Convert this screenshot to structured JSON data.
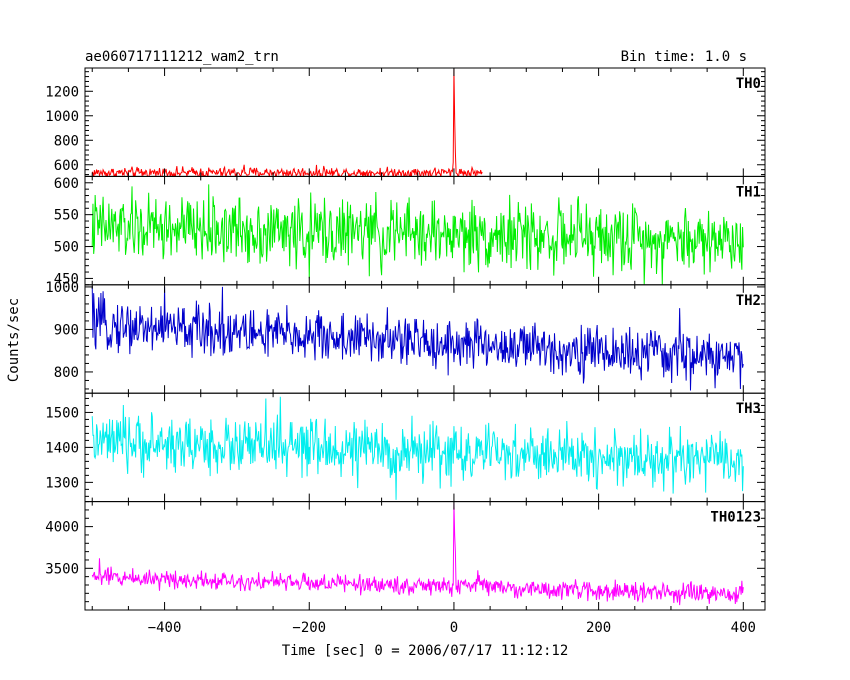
{
  "header": {
    "title": "ae060717111212_wam2_trn",
    "bin_time": "Bin time: 1.0 s"
  },
  "chart_data": {
    "type": "line",
    "xlabel": "Time [sec] 0 = 2006/07/17 11:12:12",
    "ylabel": "Counts/sec",
    "xlim": [
      -510,
      430
    ],
    "x_ticks": [
      -400,
      -200,
      0,
      200,
      400
    ],
    "x_tick_labels": [
      "−400",
      "−200",
      "0",
      "200",
      "400"
    ],
    "x_range": [
      -500,
      400
    ],
    "panels": [
      {
        "name": "TH0",
        "color": "#ff0000",
        "ylim": [
          505,
          1390
        ],
        "y_ticks": [
          600,
          800,
          1000,
          1200
        ],
        "baseline_start": 535,
        "baseline_end": 535,
        "noise": 22,
        "spikes": [
          [
            0,
            1380
          ],
          [
            1,
            980
          ],
          [
            2,
            700
          ],
          [
            -1,
            620
          ],
          [
            291,
            720
          ],
          [
            108,
            630
          ],
          [
            -290,
            600
          ],
          [
            -180,
            590
          ]
        ],
        "bumps": [
          [
            40,
            40,
            80
          ]
        ]
      },
      {
        "name": "TH1",
        "color": "#00ee00",
        "ylim": [
          440,
          610
        ],
        "y_ticks": [
          450,
          500,
          550,
          600
        ],
        "baseline_start": 530,
        "baseline_end": 510,
        "noise": 26,
        "spikes": [
          [
            -200,
            605
          ],
          [
            -200,
            450
          ],
          [
            -100,
            455
          ],
          [
            220,
            455
          ]
        ],
        "bumps": []
      },
      {
        "name": "TH2",
        "color": "#0000cc",
        "ylim": [
          750,
          1005
        ],
        "y_ticks": [
          800,
          900,
          1000
        ],
        "baseline_start": 912,
        "baseline_end": 830,
        "noise": 30,
        "spikes": [
          [
            -500,
            1000
          ],
          [
            -400,
            1000
          ],
          [
            -320,
            1000
          ],
          [
            396,
            760
          ],
          [
            312,
            950
          ]
        ],
        "bumps": []
      },
      {
        "name": "TH3",
        "color": "#00eeee",
        "ylim": [
          1245,
          1555
        ],
        "y_ticks": [
          1300,
          1400,
          1500
        ],
        "baseline_start": 1415,
        "baseline_end": 1360,
        "noise": 40,
        "spikes": [
          [
            -240,
            1545
          ],
          [
            -260,
            1540
          ],
          [
            -80,
            1250
          ]
        ],
        "bumps": []
      },
      {
        "name": "TH0123",
        "color": "#ff00ff",
        "ylim": [
          3000,
          4300
        ],
        "y_ticks": [
          3500,
          4000
        ],
        "baseline_start": 3400,
        "baseline_end": 3180,
        "noise": 55,
        "spikes": [
          [
            0,
            4280
          ],
          [
            1,
            3900
          ],
          [
            2,
            3700
          ],
          [
            -490,
            3620
          ],
          [
            290,
            3300
          ],
          [
            398,
            3350
          ]
        ],
        "bumps": [
          [
            30,
            60,
            90
          ]
        ]
      }
    ]
  }
}
